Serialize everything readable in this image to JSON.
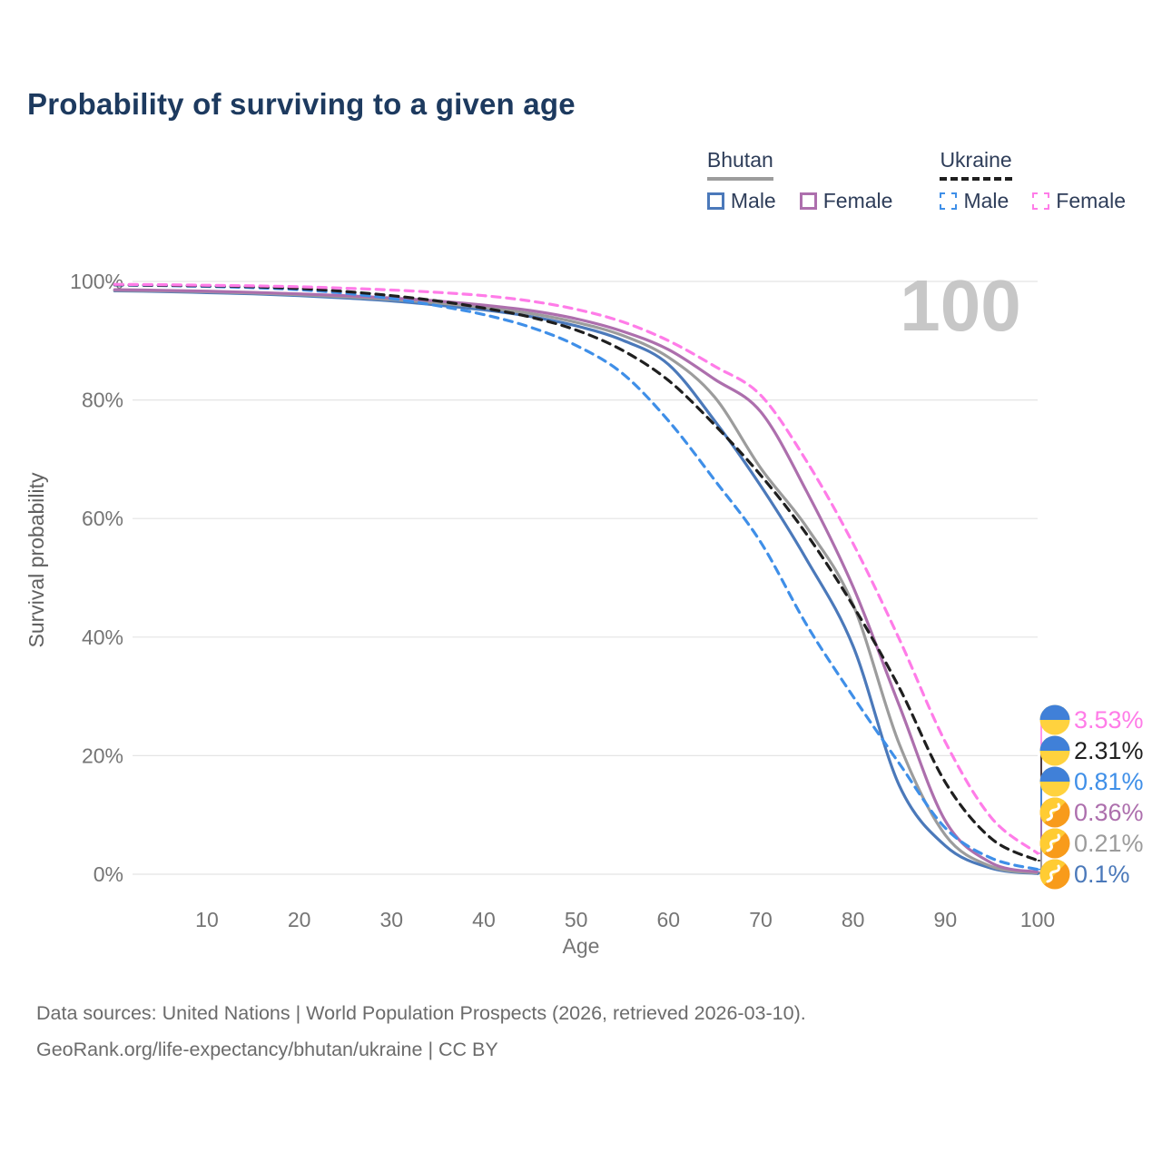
{
  "title": "Probability of surviving to a given age",
  "age_counter": "100",
  "legend": {
    "groups": [
      {
        "label": "Bhutan",
        "line_style": "solid",
        "line_color": "#9c9c9c",
        "items": [
          {
            "label": "Male",
            "color": "#4b79ba"
          },
          {
            "label": "Female",
            "color": "#ad6fad"
          }
        ]
      },
      {
        "label": "Ukraine",
        "line_style": "dashed",
        "line_color": "#1f1f1f",
        "items": [
          {
            "label": "Male",
            "color": "#3f8fe8"
          },
          {
            "label": "Female",
            "color": "#ff7ce8"
          }
        ]
      }
    ]
  },
  "chart_data": {
    "type": "line",
    "title": "Probability of surviving to a given age",
    "xlabel": "Age",
    "ylabel": "Survival probability",
    "xlim": [
      0,
      100
    ],
    "ylim": [
      0,
      100
    ],
    "x_ticks": [
      10,
      20,
      30,
      40,
      50,
      60,
      70,
      80,
      90,
      100
    ],
    "y_ticks": [
      0,
      20,
      40,
      60,
      80,
      100
    ],
    "y_tick_suffix": "%",
    "grid": "horizontal",
    "legend_position": "top-right",
    "x": [
      0,
      5,
      10,
      15,
      20,
      25,
      30,
      35,
      40,
      45,
      50,
      55,
      60,
      65,
      70,
      75,
      80,
      85,
      90,
      95,
      100
    ],
    "series": [
      {
        "name": "Bhutan — Male",
        "country": "bhutan",
        "color": "#4b79ba",
        "dashed": false,
        "end_label": "0.1%",
        "values": [
          98.4,
          98.3,
          98.1,
          97.9,
          97.6,
          97.2,
          96.7,
          96.0,
          95.2,
          94.1,
          92.5,
          90.1,
          86.0,
          76.5,
          65.5,
          53.0,
          38.5,
          15.0,
          4.8,
          1.0,
          0.1
        ]
      },
      {
        "name": "Bhutan",
        "country": "bhutan",
        "color": "#9c9c9c",
        "dashed": false,
        "end_label": "0.21%",
        "values": [
          98.5,
          98.4,
          98.25,
          98.05,
          97.75,
          97.4,
          96.95,
          96.35,
          95.6,
          94.6,
          93.1,
          90.9,
          87.2,
          80.5,
          68.5,
          58.5,
          45.5,
          22.0,
          6.6,
          1.3,
          0.21
        ]
      },
      {
        "name": "Bhutan — Female",
        "country": "bhutan",
        "color": "#ad6fad",
        "dashed": false,
        "end_label": "0.36%",
        "values": [
          98.6,
          98.5,
          98.35,
          98.15,
          97.9,
          97.6,
          97.2,
          96.7,
          96.0,
          95.1,
          93.7,
          91.6,
          88.5,
          83.5,
          78.0,
          64.5,
          48.5,
          28.5,
          9.0,
          1.9,
          0.36
        ]
      },
      {
        "name": "Ukraine — Male",
        "country": "ukraine",
        "color": "#3f8fe8",
        "dashed": true,
        "end_label": "0.81%",
        "values": [
          99.4,
          99.3,
          99.15,
          98.95,
          98.6,
          98.0,
          97.1,
          95.9,
          94.4,
          92.3,
          89.2,
          84.5,
          76.5,
          66.5,
          56.0,
          42.0,
          30.0,
          18.7,
          7.8,
          2.7,
          0.81
        ]
      },
      {
        "name": "Ukraine",
        "country": "ukraine",
        "color": "#1f1f1f",
        "dashed": true,
        "end_label": "2.31%",
        "values": [
          99.45,
          99.35,
          99.25,
          99.1,
          98.8,
          98.3,
          97.6,
          96.7,
          95.5,
          94.0,
          91.8,
          88.4,
          83.3,
          75.8,
          67.3,
          57.3,
          45.3,
          31.5,
          15.5,
          6.0,
          2.31
        ]
      },
      {
        "name": "Ukraine — Female",
        "country": "ukraine",
        "color": "#ff7ce8",
        "dashed": true,
        "end_label": "3.53%",
        "values": [
          99.5,
          99.45,
          99.35,
          99.25,
          99.1,
          98.85,
          98.55,
          98.15,
          97.6,
          96.7,
          95.3,
          93.2,
          90.0,
          85.7,
          80.8,
          69.6,
          55.8,
          39.7,
          22.3,
          9.5,
          3.53
        ]
      }
    ]
  },
  "footer": {
    "line1": "Data sources: United Nations | World Population Prospects (2026, retrieved 2026-03-10).",
    "line2": "GeoRank.org/life-expectancy/bhutan/ukraine | CC BY"
  },
  "colors": {
    "title": "#1d3a5f",
    "axis": "#757575",
    "axis_title": "#606060",
    "grid": "#e4e4e4",
    "watermark": "#c7c7c7",
    "footer": "#6b6b6b",
    "ukraine_flag_blue": "#4080d8",
    "ukraine_flag_yellow": "#ffd23e",
    "bhutan_flag_yellow": "#ffcc33",
    "bhutan_flag_orange": "#f89b1b"
  }
}
